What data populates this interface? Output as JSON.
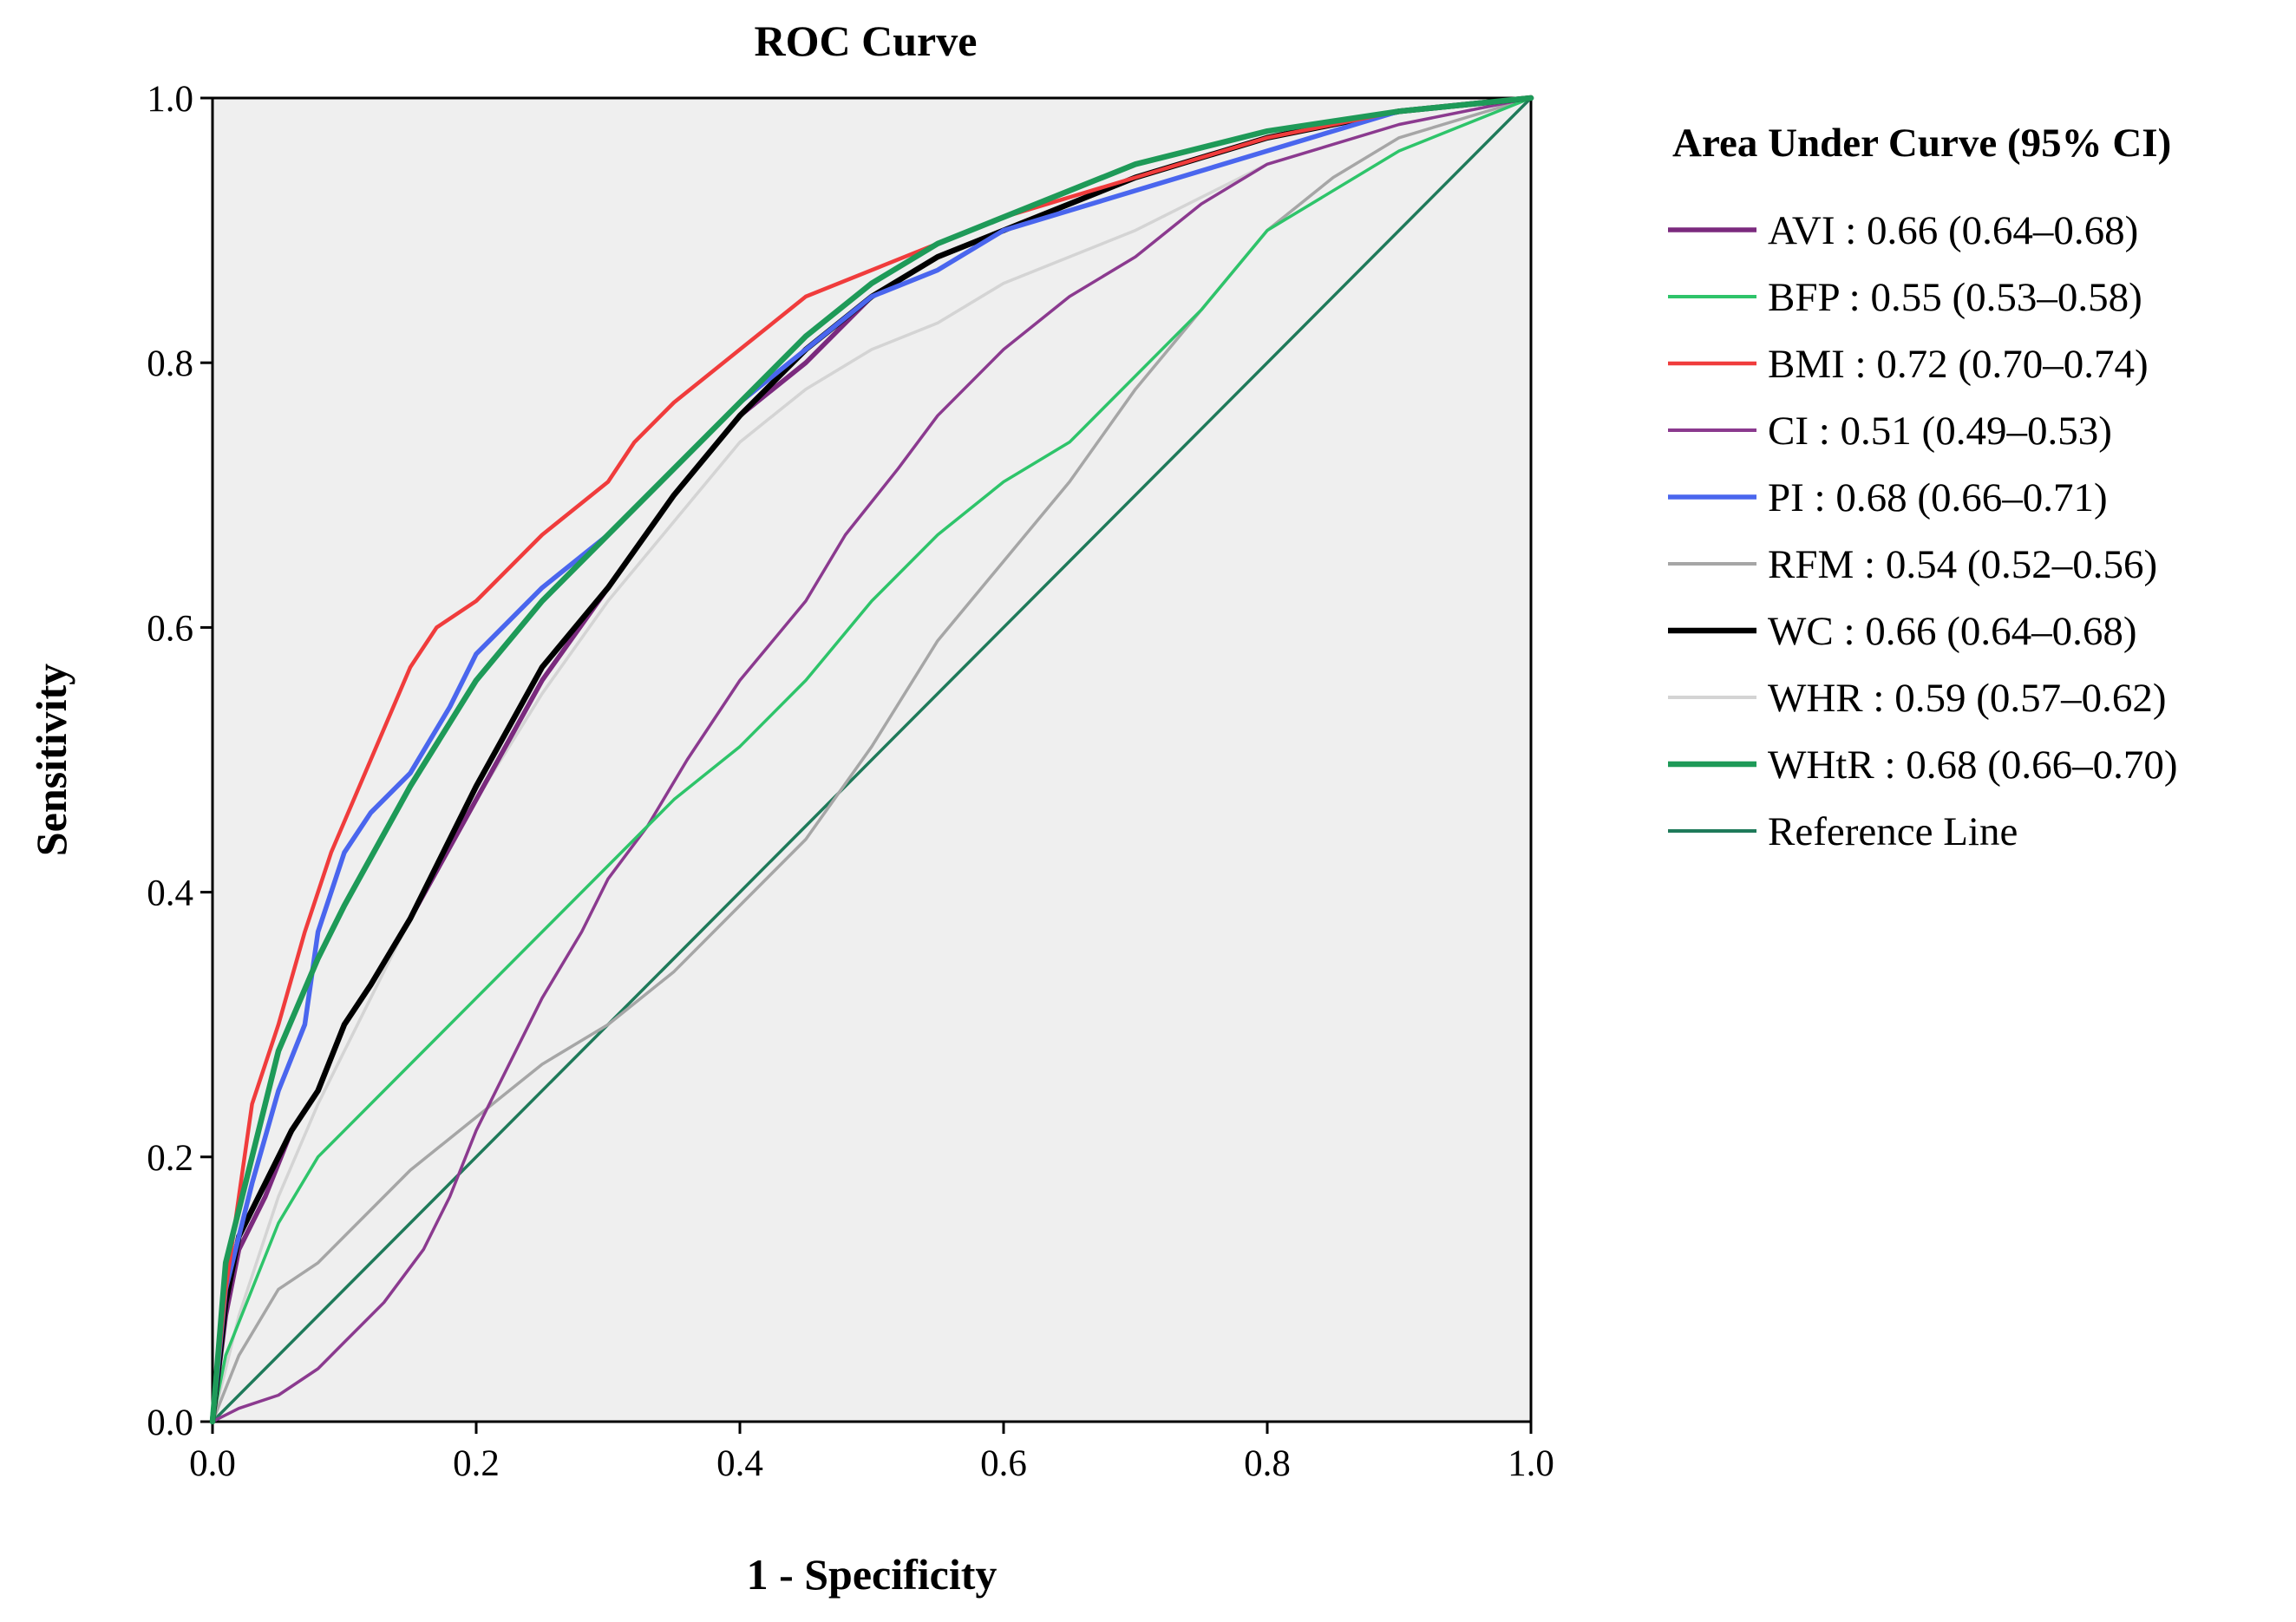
{
  "chart_data": {
    "type": "line",
    "title": "ROC Curve",
    "xlabel": "1 - Specificity",
    "ylabel": "Sensitivity",
    "xlim": [
      0,
      1
    ],
    "ylim": [
      0,
      1
    ],
    "xticks": [
      "0.0",
      "0.2",
      "0.4",
      "0.6",
      "0.8",
      "1.0"
    ],
    "yticks": [
      "0.0",
      "0.2",
      "0.4",
      "0.6",
      "0.8",
      "1.0"
    ],
    "plot_background": "#efefef",
    "legend_position": "right",
    "legend_title": "Area Under Curve (95% CI)",
    "series": [
      {
        "name": "AVI",
        "label": "AVI : 0.66 (0.64–0.68)",
        "color": "#7b2a7e",
        "width": 5.5,
        "x": [
          0,
          0.01,
          0.02,
          0.04,
          0.06,
          0.08,
          0.1,
          0.12,
          0.15,
          0.2,
          0.25,
          0.3,
          0.35,
          0.4,
          0.45,
          0.5,
          0.55,
          0.6,
          0.7,
          0.8,
          0.9,
          1.0
        ],
        "y": [
          0,
          0.08,
          0.13,
          0.17,
          0.22,
          0.25,
          0.3,
          0.33,
          0.38,
          0.47,
          0.56,
          0.63,
          0.7,
          0.76,
          0.8,
          0.85,
          0.88,
          0.9,
          0.94,
          0.97,
          0.99,
          1.0
        ]
      },
      {
        "name": "BFP",
        "label": "BFP : 0.55 (0.53–0.58)",
        "color": "#2ec46a",
        "width": 3.5,
        "x": [
          0,
          0.01,
          0.03,
          0.05,
          0.08,
          0.1,
          0.15,
          0.2,
          0.25,
          0.3,
          0.35,
          0.4,
          0.45,
          0.5,
          0.55,
          0.6,
          0.65,
          0.7,
          0.75,
          0.8,
          0.9,
          1.0
        ],
        "y": [
          0,
          0.05,
          0.1,
          0.15,
          0.2,
          0.22,
          0.27,
          0.32,
          0.37,
          0.42,
          0.47,
          0.51,
          0.56,
          0.62,
          0.67,
          0.71,
          0.74,
          0.79,
          0.84,
          0.9,
          0.96,
          1.0
        ]
      },
      {
        "name": "BMI",
        "label": "BMI : 0.72 (0.70–0.74)",
        "color": "#f03c3c",
        "width": 4.5,
        "x": [
          0,
          0.01,
          0.02,
          0.03,
          0.05,
          0.07,
          0.09,
          0.12,
          0.15,
          0.17,
          0.2,
          0.25,
          0.3,
          0.32,
          0.35,
          0.4,
          0.45,
          0.5,
          0.6,
          0.7,
          0.8,
          0.9,
          1.0
        ],
        "y": [
          0,
          0.1,
          0.17,
          0.24,
          0.3,
          0.37,
          0.43,
          0.5,
          0.57,
          0.6,
          0.62,
          0.67,
          0.71,
          0.74,
          0.77,
          0.81,
          0.85,
          0.87,
          0.91,
          0.94,
          0.97,
          0.99,
          1.0
        ]
      },
      {
        "name": "CI",
        "label": "CI : 0.51 (0.49–0.53)",
        "color": "#8b3a8f",
        "width": 3.5,
        "x": [
          0,
          0.02,
          0.05,
          0.08,
          0.1,
          0.13,
          0.16,
          0.18,
          0.2,
          0.22,
          0.25,
          0.28,
          0.3,
          0.33,
          0.36,
          0.4,
          0.45,
          0.48,
          0.52,
          0.55,
          0.6,
          0.65,
          0.7,
          0.75,
          0.8,
          0.9,
          1.0
        ],
        "y": [
          0,
          0.01,
          0.02,
          0.04,
          0.06,
          0.09,
          0.13,
          0.17,
          0.22,
          0.26,
          0.32,
          0.37,
          0.41,
          0.45,
          0.5,
          0.56,
          0.62,
          0.67,
          0.72,
          0.76,
          0.81,
          0.85,
          0.88,
          0.92,
          0.95,
          0.98,
          1.0
        ]
      },
      {
        "name": "PI",
        "label": "PI : 0.68 (0.66–0.71)",
        "color": "#4a66ee",
        "width": 5.5,
        "x": [
          0,
          0.01,
          0.03,
          0.05,
          0.07,
          0.08,
          0.1,
          0.12,
          0.15,
          0.18,
          0.2,
          0.25,
          0.3,
          0.35,
          0.4,
          0.45,
          0.5,
          0.55,
          0.6,
          0.7,
          0.8,
          0.9,
          1.0
        ],
        "y": [
          0,
          0.1,
          0.18,
          0.25,
          0.3,
          0.37,
          0.43,
          0.46,
          0.49,
          0.54,
          0.58,
          0.63,
          0.67,
          0.72,
          0.77,
          0.81,
          0.85,
          0.87,
          0.9,
          0.93,
          0.96,
          0.99,
          1.0
        ]
      },
      {
        "name": "RFM",
        "label": "RFM : 0.54 (0.52–0.56)",
        "color": "#a6a6a6",
        "width": 3.5,
        "x": [
          0,
          0.02,
          0.05,
          0.08,
          0.1,
          0.15,
          0.2,
          0.25,
          0.3,
          0.35,
          0.4,
          0.45,
          0.5,
          0.55,
          0.6,
          0.65,
          0.7,
          0.75,
          0.8,
          0.85,
          0.9,
          1.0
        ],
        "y": [
          0,
          0.05,
          0.1,
          0.12,
          0.14,
          0.19,
          0.23,
          0.27,
          0.3,
          0.34,
          0.39,
          0.44,
          0.51,
          0.59,
          0.65,
          0.71,
          0.78,
          0.84,
          0.9,
          0.94,
          0.97,
          1.0
        ]
      },
      {
        "name": "WC",
        "label": "WC : 0.66 (0.64–0.68)",
        "color": "#000000",
        "width": 6.5,
        "x": [
          0,
          0.01,
          0.02,
          0.04,
          0.06,
          0.08,
          0.1,
          0.12,
          0.15,
          0.2,
          0.25,
          0.3,
          0.35,
          0.4,
          0.45,
          0.5,
          0.55,
          0.6,
          0.7,
          0.8,
          0.9,
          1.0
        ],
        "y": [
          0,
          0.09,
          0.14,
          0.18,
          0.22,
          0.25,
          0.3,
          0.33,
          0.38,
          0.48,
          0.57,
          0.63,
          0.7,
          0.76,
          0.81,
          0.85,
          0.88,
          0.9,
          0.94,
          0.97,
          0.99,
          1.0
        ]
      },
      {
        "name": "WHR",
        "label": "WHR : 0.59 (0.57–0.62)",
        "color": "#d4d4d4",
        "width": 3.5,
        "x": [
          0,
          0.02,
          0.05,
          0.08,
          0.1,
          0.15,
          0.2,
          0.25,
          0.3,
          0.35,
          0.4,
          0.45,
          0.5,
          0.55,
          0.6,
          0.7,
          0.8,
          0.9,
          1.0
        ],
        "y": [
          0,
          0.08,
          0.17,
          0.24,
          0.28,
          0.38,
          0.47,
          0.55,
          0.62,
          0.68,
          0.74,
          0.78,
          0.81,
          0.83,
          0.86,
          0.9,
          0.95,
          0.98,
          1.0
        ]
      },
      {
        "name": "WHtR",
        "label": "WHtR : 0.68 (0.66–0.70)",
        "color": "#1e9a58",
        "width": 6.5,
        "x": [
          0,
          0.01,
          0.03,
          0.05,
          0.08,
          0.1,
          0.15,
          0.2,
          0.25,
          0.3,
          0.35,
          0.4,
          0.45,
          0.5,
          0.55,
          0.6,
          0.65,
          0.7,
          0.8,
          0.9,
          1.0
        ],
        "y": [
          0,
          0.12,
          0.2,
          0.28,
          0.35,
          0.39,
          0.48,
          0.56,
          0.62,
          0.67,
          0.72,
          0.77,
          0.82,
          0.86,
          0.89,
          0.91,
          0.93,
          0.95,
          0.975,
          0.99,
          1.0
        ]
      },
      {
        "name": "Reference Line",
        "label": "Reference Line",
        "color": "#1f7a5a",
        "width": 3.5,
        "x": [
          0,
          1
        ],
        "y": [
          0,
          1
        ]
      }
    ]
  }
}
